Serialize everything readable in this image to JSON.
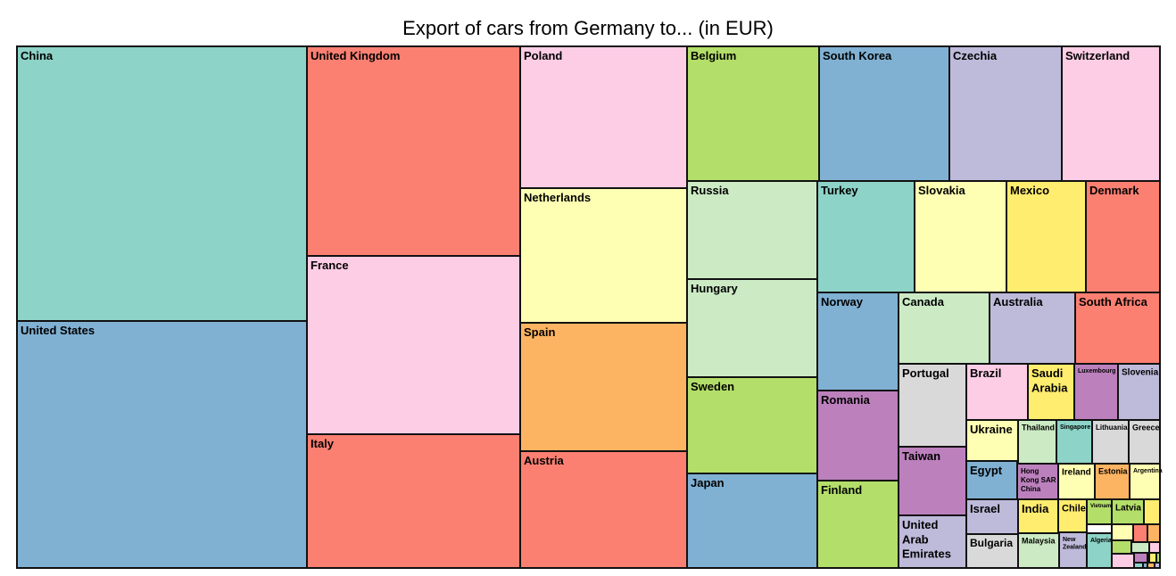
{
  "chart_data": {
    "type": "treemap",
    "title": "Export of cars from Germany to... (in EUR)",
    "palette": {
      "teal": "#8DD3C7",
      "yellow": "#FFFFB3",
      "lavender": "#BEBADA",
      "red": "#FB8072",
      "blue": "#80B1D3",
      "orange": "#FDB462",
      "green": "#B3DE69",
      "pink": "#FCCDE5",
      "grey": "#D9D9D9",
      "purple": "#BC80BD",
      "mint": "#CCEBC5",
      "gold": "#FFED6F"
    },
    "labeled_tiles": [
      {
        "name": "China",
        "color": "#8DD3C7"
      },
      {
        "name": "United States",
        "color": "#80B1D3"
      },
      {
        "name": "United Kingdom",
        "color": "#FB8072"
      },
      {
        "name": "France",
        "color": "#FCCDE5"
      },
      {
        "name": "Italy",
        "color": "#FB8072"
      },
      {
        "name": "Poland",
        "color": "#FCCDE5"
      },
      {
        "name": "Netherlands",
        "color": "#FFFFB3"
      },
      {
        "name": "Spain",
        "color": "#FDB462"
      },
      {
        "name": "Austria",
        "color": "#FB8072"
      },
      {
        "name": "Belgium",
        "color": "#B3DE69"
      },
      {
        "name": "South Korea",
        "color": "#80B1D3"
      },
      {
        "name": "Czechia",
        "color": "#BEBADA"
      },
      {
        "name": "Switzerland",
        "color": "#FCCDE5"
      },
      {
        "name": "Russia",
        "color": "#CCEBC5"
      },
      {
        "name": "Hungary",
        "color": "#CCEBC5"
      },
      {
        "name": "Sweden",
        "color": "#B3DE69"
      },
      {
        "name": "Japan",
        "color": "#80B1D3"
      },
      {
        "name": "Turkey",
        "color": "#8DD3C7"
      },
      {
        "name": "Slovakia",
        "color": "#FFFFB3"
      },
      {
        "name": "Mexico",
        "color": "#FFED6F"
      },
      {
        "name": "Denmark",
        "color": "#FB8072"
      },
      {
        "name": "Norway",
        "color": "#80B1D3"
      },
      {
        "name": "Romania",
        "color": "#BC80BD"
      },
      {
        "name": "Finland",
        "color": "#B3DE69"
      },
      {
        "name": "Canada",
        "color": "#CCEBC5"
      },
      {
        "name": "Australia",
        "color": "#BEBADA"
      },
      {
        "name": "South Africa",
        "color": "#FB8072"
      },
      {
        "name": "Portugal",
        "color": "#D9D9D9"
      },
      {
        "name": "Taiwan",
        "color": "#BC80BD"
      },
      {
        "name": "United Arab Emirates",
        "color": "#BEBADA"
      },
      {
        "name": "Brazil",
        "color": "#FCCDE5"
      },
      {
        "name": "Saudi Arabia",
        "color": "#FFED6F"
      },
      {
        "name": "Luxembourg",
        "color": "#BC80BD"
      },
      {
        "name": "Slovenia",
        "color": "#BEBADA"
      },
      {
        "name": "Ukraine",
        "color": "#FFFFB3"
      },
      {
        "name": "Thailand",
        "color": "#CCEBC5"
      },
      {
        "name": "Singapore",
        "color": "#8DD3C7"
      },
      {
        "name": "Lithuania",
        "color": "#D9D9D9"
      },
      {
        "name": "Greece",
        "color": "#D9D9D9"
      },
      {
        "name": "Egypt",
        "color": "#80B1D3"
      },
      {
        "name": "Hong Kong SAR China",
        "color": "#BC80BD"
      },
      {
        "name": "Ireland",
        "color": "#FFFFB3"
      },
      {
        "name": "Estonia",
        "color": "#FDB462"
      },
      {
        "name": "Argentina",
        "color": "#FFFFB3"
      },
      {
        "name": "Israel",
        "color": "#BEBADA"
      },
      {
        "name": "India",
        "color": "#FFED6F"
      },
      {
        "name": "Chile",
        "color": "#FFED6F"
      },
      {
        "name": "Vietnam",
        "color": "#B3DE69"
      },
      {
        "name": "Latvia",
        "color": "#B3DE69"
      },
      {
        "name": "Bulgaria",
        "color": "#D9D9D9"
      },
      {
        "name": "Malaysia",
        "color": "#CCEBC5"
      },
      {
        "name": "New Zealand",
        "color": "#BEBADA"
      },
      {
        "name": "Algeria",
        "color": "#8DD3C7"
      }
    ],
    "unlabeled_tile_colors": [
      "#FFED6F",
      "#FFFFB3",
      "#FB8072",
      "#FDB462",
      "#B3DE69",
      "#CCEBC5",
      "#FCCDE5",
      "#FCCDE5",
      "#BC80BD",
      "#80B1D3",
      "#FDB462",
      "#BEBADA",
      "#8DD3C7",
      "#80B1D3",
      "#B3DE69",
      "#FFED6F"
    ]
  }
}
